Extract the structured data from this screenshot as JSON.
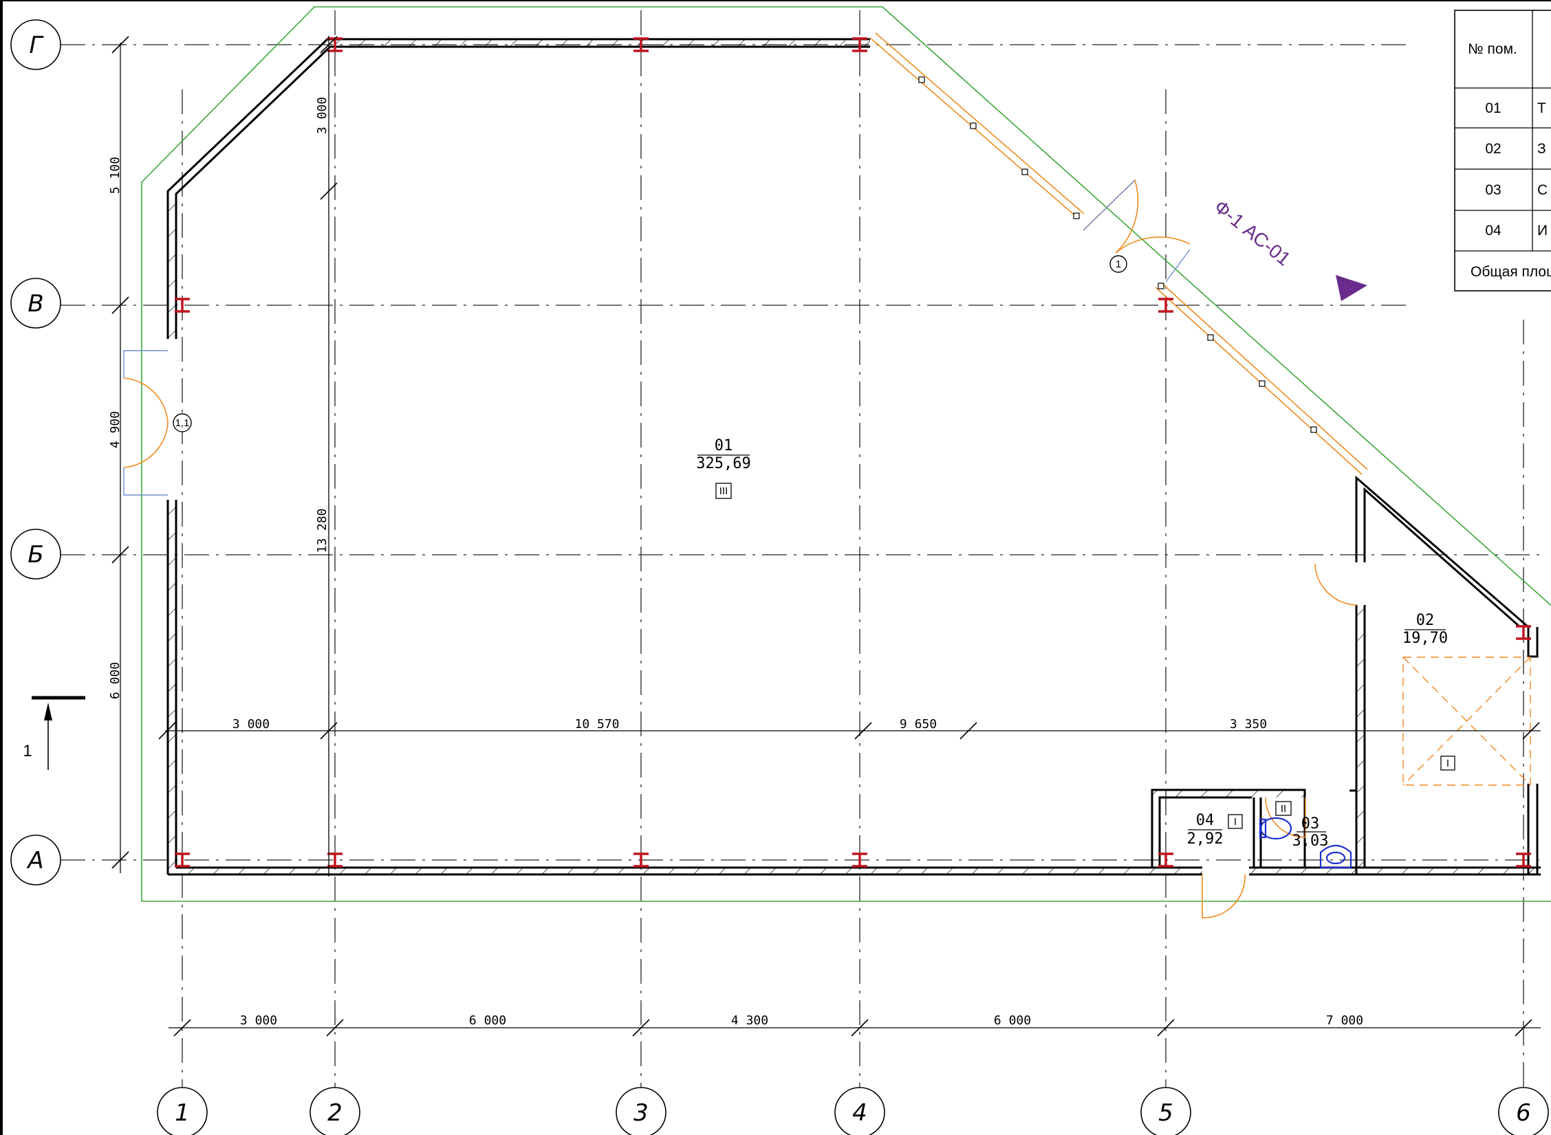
{
  "axes": {
    "letters": [
      "Г",
      "В",
      "Б",
      "А"
    ],
    "numbers": [
      "1",
      "2",
      "3",
      "4",
      "5",
      "6"
    ]
  },
  "dimensions": {
    "left_vertical": [
      "5 100",
      "4 900",
      "6 000"
    ],
    "inner_vertical": [
      "3 000",
      "13 280"
    ],
    "middle_horizontal": [
      "3 000",
      "10 570",
      "9 650",
      "3 350"
    ],
    "bottom_horizontal": [
      "3 000",
      "6 000",
      "4 300",
      "6 000",
      "7 000"
    ]
  },
  "rooms": [
    {
      "number": "01",
      "area": "325,69",
      "category": "III"
    },
    {
      "number": "02",
      "area": "19,70",
      "category": "I"
    },
    {
      "number": "03",
      "area": "3,03",
      "category": "II"
    },
    {
      "number": "04",
      "area": "2,92",
      "category": "I"
    }
  ],
  "door_marks": [
    "1",
    "1,1"
  ],
  "section_mark": "1",
  "facade_reference": "Ф-1 АС-01",
  "explication_table": {
    "header": "№ пом.",
    "rows": [
      "01",
      "02",
      "03",
      "04"
    ],
    "row_name_fragments": [
      "Т",
      "З",
      "С",
      "И"
    ],
    "footer": "Общая площ"
  },
  "colors": {
    "wall": "#000000",
    "column": "#c0141e",
    "door": "#f08a1e",
    "window_frame": "#6f8fd0",
    "outline": "#3aa83a",
    "plumbing": "#1f2fd0",
    "reference": "#6a2c8c"
  }
}
